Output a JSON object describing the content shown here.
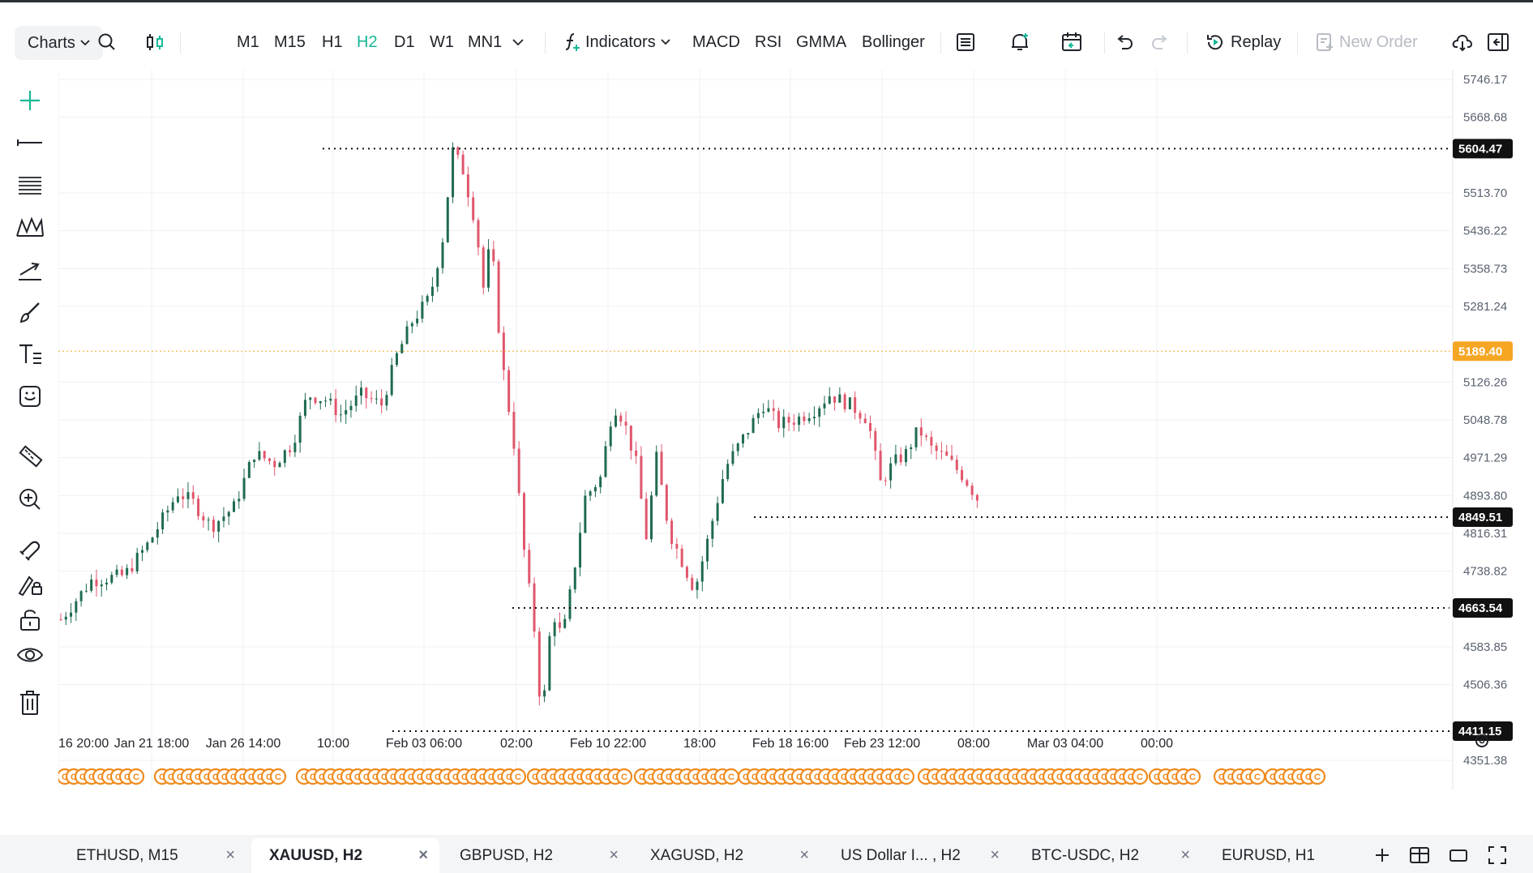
{
  "toolbar": {
    "charts_label": "Charts",
    "timeframes": [
      "M1",
      "M15",
      "H1",
      "H2",
      "D1",
      "W1",
      "MN1"
    ],
    "active_timeframe": "H2",
    "indicators_label": "Indicators",
    "indicator_shortcuts": [
      "MACD",
      "RSI",
      "GMMA",
      "Bollinger"
    ],
    "replay_label": "Replay",
    "new_order_label": "New Order"
  },
  "sidebar": {
    "tools": [
      "crosshair-icon",
      "horizontal-line-icon",
      "fib-levels-icon",
      "pattern-icon",
      "trend-arrow-icon",
      "brush-icon",
      "text-tool-icon",
      "sticker-icon",
      "ruler-icon",
      "zoom-in-icon",
      "magnet-icon",
      "lock-drawing-icon",
      "unlock-icon",
      "eye-icon",
      "trash-icon"
    ]
  },
  "chart_data": {
    "type": "candlestick",
    "symbol": "XAUUSD",
    "timeframe": "H2",
    "price_ticks": [
      "5746.17",
      "5668.68",
      "5513.70",
      "5436.22",
      "5358.73",
      "5281.24",
      "5126.26",
      "5048.78",
      "4971.29",
      "4893.80",
      "4816.31",
      "4738.82",
      "4583.85",
      "4506.36",
      "4351.38"
    ],
    "price_range": [
      4330,
      5780
    ],
    "time_ticks": [
      "16 20:00",
      "Jan 21 18:00",
      "Jan 26 14:00",
      "10:00",
      "Feb 03 06:00",
      "02:00",
      "Feb 10 22:00",
      "18:00",
      "Feb 18 16:00",
      "Feb 23 12:00",
      "08:00",
      "Mar 03 04:00",
      "00:00"
    ],
    "current_price": "5189.40",
    "horizontal_levels": [
      {
        "price": "5604.47",
        "from_date": "Jan 29"
      },
      {
        "price": "4849.51",
        "from_date": "Feb 17"
      },
      {
        "price": "4663.54",
        "from_date": "Feb 05"
      },
      {
        "price": "4411.15",
        "from_date": "Jan 30"
      }
    ],
    "path": [
      {
        "d": 0,
        "p": 4640
      },
      {
        "d": 1.2,
        "p": 4720
      },
      {
        "d": 2.5,
        "p": 4730
      },
      {
        "d": 3.5,
        "p": 4800
      },
      {
        "d": 4.6,
        "p": 4900
      },
      {
        "d": 5.2,
        "p": 4880
      },
      {
        "d": 5.9,
        "p": 4830
      },
      {
        "d": 6.8,
        "p": 4870
      },
      {
        "d": 7.6,
        "p": 4980
      },
      {
        "d": 8.4,
        "p": 4960
      },
      {
        "d": 9.1,
        "p": 5000
      },
      {
        "d": 9.7,
        "p": 5100
      },
      {
        "d": 10.4,
        "p": 5090
      },
      {
        "d": 11.0,
        "p": 5060
      },
      {
        "d": 11.8,
        "p": 5100
      },
      {
        "d": 12.6,
        "p": 5080
      },
      {
        "d": 13.2,
        "p": 5180
      },
      {
        "d": 13.8,
        "p": 5250
      },
      {
        "d": 14.5,
        "p": 5300
      },
      {
        "d": 15.0,
        "p": 5420
      },
      {
        "d": 15.4,
        "p": 5600
      },
      {
        "d": 15.8,
        "p": 5560
      },
      {
        "d": 16.3,
        "p": 5450
      },
      {
        "d": 16.6,
        "p": 5320
      },
      {
        "d": 16.9,
        "p": 5420
      },
      {
        "d": 17.3,
        "p": 5180
      },
      {
        "d": 17.8,
        "p": 5000
      },
      {
        "d": 18.2,
        "p": 4780
      },
      {
        "d": 18.6,
        "p": 4620
      },
      {
        "d": 18.9,
        "p": 4430
      },
      {
        "d": 19.3,
        "p": 4660
      },
      {
        "d": 19.7,
        "p": 4600
      },
      {
        "d": 20.1,
        "p": 4720
      },
      {
        "d": 20.6,
        "p": 4890
      },
      {
        "d": 21.2,
        "p": 4930
      },
      {
        "d": 21.7,
        "p": 5080
      },
      {
        "d": 22.1,
        "p": 5050
      },
      {
        "d": 22.6,
        "p": 4960
      },
      {
        "d": 23.0,
        "p": 4810
      },
      {
        "d": 23.4,
        "p": 4970
      },
      {
        "d": 23.9,
        "p": 4820
      },
      {
        "d": 24.4,
        "p": 4760
      },
      {
        "d": 24.9,
        "p": 4700
      },
      {
        "d": 25.4,
        "p": 4800
      },
      {
        "d": 26.1,
        "p": 4950
      },
      {
        "d": 26.9,
        "p": 5020
      },
      {
        "d": 27.6,
        "p": 5080
      },
      {
        "d": 28.2,
        "p": 5040
      },
      {
        "d": 28.9,
        "p": 5050
      },
      {
        "d": 29.6,
        "p": 5070
      },
      {
        "d": 30.2,
        "p": 5100
      },
      {
        "d": 31.0,
        "p": 5080
      },
      {
        "d": 31.7,
        "p": 5050
      },
      {
        "d": 32.2,
        "p": 4920
      },
      {
        "d": 32.7,
        "p": 4960
      },
      {
        "d": 33.2,
        "p": 4980
      },
      {
        "d": 33.7,
        "p": 5030
      },
      {
        "d": 34.2,
        "p": 4990
      },
      {
        "d": 34.8,
        "p": 4970
      },
      {
        "d": 35.5,
        "p": 4930
      },
      {
        "d": 36.1,
        "p": 4880
      },
      {
        "d": 36.7,
        "p": 4870
      },
      {
        "d": 37.3,
        "p": 4920
      },
      {
        "d": 37.8,
        "p": 4980
      },
      {
        "d": 38.5,
        "p": 4960
      },
      {
        "d": 39.2,
        "p": 4990
      },
      {
        "d": 40.0,
        "p": 4990
      },
      {
        "d": 40.6,
        "p": 5020
      },
      {
        "d": 41.2,
        "p": 5100
      },
      {
        "d": 41.8,
        "p": 5170
      },
      {
        "d": 42.3,
        "p": 5160
      },
      {
        "d": 42.8,
        "p": 5240
      },
      {
        "d": 43.3,
        "p": 5180
      },
      {
        "d": 43.9,
        "p": 5150
      },
      {
        "d": 44.5,
        "p": 5170
      },
      {
        "d": 45.0,
        "p": 5200
      },
      {
        "d": 45.6,
        "p": 5190
      }
    ],
    "event_marker_color": "#f08a1c"
  },
  "tabs": [
    {
      "label": "ETHUSD, M15",
      "active": false
    },
    {
      "label": "XAUUSD, H2",
      "active": true
    },
    {
      "label": "GBPUSD, H2",
      "active": false
    },
    {
      "label": "XAGUSD, H2",
      "active": false
    },
    {
      "label": "US Dollar I... , H2",
      "active": false
    },
    {
      "label": "BTC-USDC, H2",
      "active": false
    },
    {
      "label": "EURUSD, H1",
      "active": false
    }
  ],
  "colors": {
    "accent": "#17b897",
    "bull": "#1f6b50",
    "bear": "#e0566c",
    "current_price_bg": "#f5a623",
    "level_bg": "#111111",
    "grid": "#eef0f3",
    "event": "#f08a1c"
  }
}
